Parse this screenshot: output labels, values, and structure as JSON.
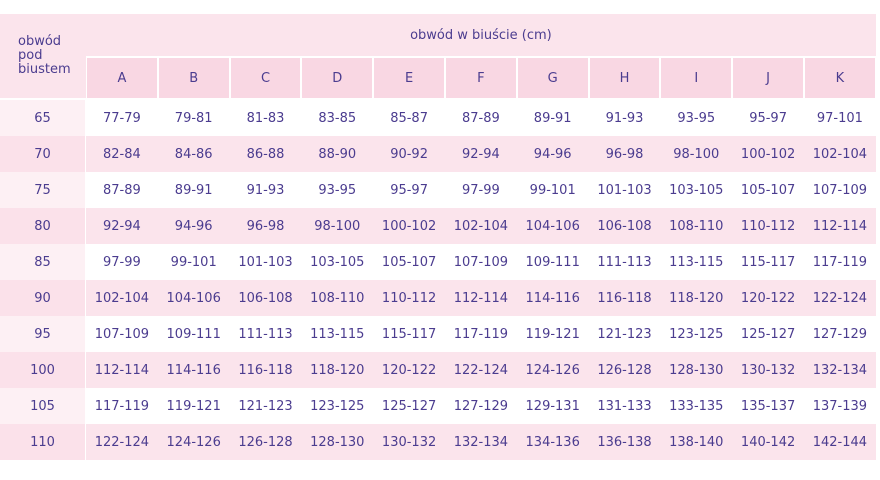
{
  "header": {
    "corner": "obwód pod biustem",
    "title": "obwód w biuście (cm)",
    "sizes": [
      "A",
      "B",
      "C",
      "D",
      "E",
      "F",
      "G",
      "H",
      "I",
      "J",
      "K"
    ]
  },
  "table": {
    "rows": [
      [
        "65",
        "77-79",
        "79-81",
        "81-83",
        "83-85",
        "85-87",
        "87-89",
        "89-91",
        "91-93",
        "93-95",
        "95-97",
        "97-101"
      ],
      [
        "70",
        "82-84",
        "84-86",
        "86-88",
        "88-90",
        "90-92",
        "92-94",
        "94-96",
        "96-98",
        "98-100",
        "100-102",
        "102-104"
      ],
      [
        "75",
        "87-89",
        "89-91",
        "91-93",
        "93-95",
        "95-97",
        "97-99",
        "99-101",
        "101-103",
        "103-105",
        "105-107",
        "107-109"
      ],
      [
        "80",
        "92-94",
        "94-96",
        "96-98",
        "98-100",
        "100-102",
        "102-104",
        "104-106",
        "106-108",
        "108-110",
        "110-112",
        "112-114"
      ],
      [
        "85",
        "97-99",
        "99-101",
        "101-103",
        "103-105",
        "105-107",
        "107-109",
        "109-111",
        "111-113",
        "113-115",
        "115-117",
        "117-119"
      ],
      [
        "90",
        "102-104",
        "104-106",
        "106-108",
        "108-110",
        "110-112",
        "112-114",
        "114-116",
        "116-118",
        "118-120",
        "120-122",
        "122-124"
      ],
      [
        "95",
        "107-109",
        "109-111",
        "111-113",
        "113-115",
        "115-117",
        "117-119",
        "119-121",
        "121-123",
        "123-125",
        "125-127",
        "127-129"
      ],
      [
        "100",
        "112-114",
        "114-116",
        "116-118",
        "118-120",
        "120-122",
        "122-124",
        "124-126",
        "126-128",
        "128-130",
        "130-132",
        "132-134"
      ],
      [
        "105",
        "117-119",
        "119-121",
        "121-123",
        "123-125",
        "125-127",
        "127-129",
        "129-131",
        "131-133",
        "133-135",
        "135-137",
        "137-139"
      ],
      [
        "110",
        "122-124",
        "124-126",
        "126-128",
        "128-130",
        "130-132",
        "132-134",
        "134-136",
        "136-138",
        "138-140",
        "140-142",
        "142-144"
      ]
    ]
  }
}
